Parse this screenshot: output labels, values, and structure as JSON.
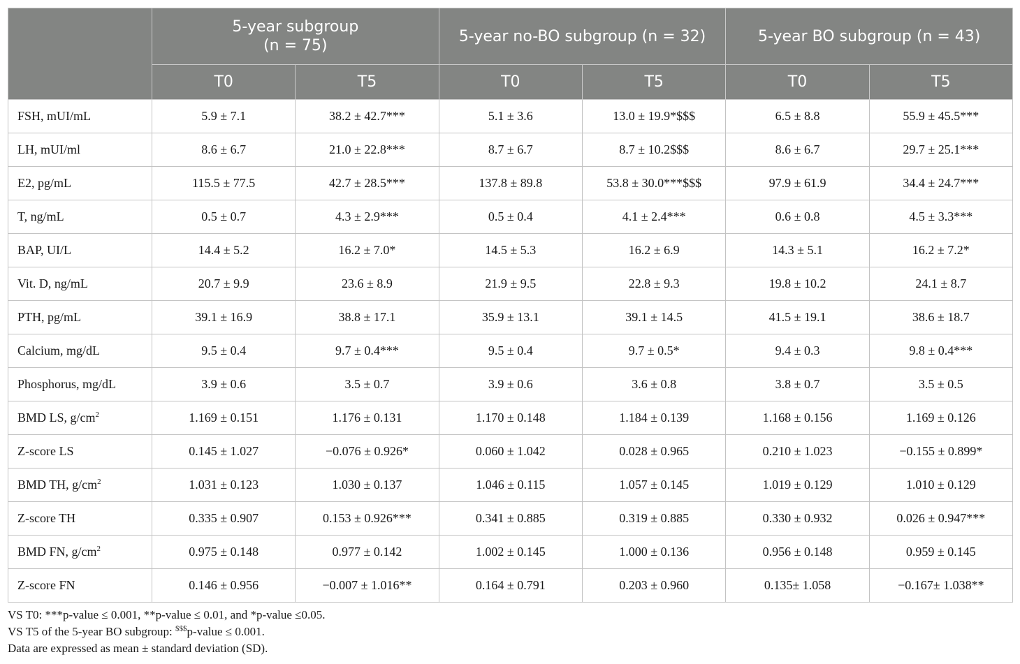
{
  "table": {
    "group_headers": [
      "",
      "5-year subgroup\n(n = 75)",
      "5-year no-BO subgroup (n = 32)",
      "5-year BO subgroup (n = 43)"
    ],
    "time_headers": [
      "T0",
      "T5",
      "T0",
      "T5",
      "T0",
      "T5"
    ],
    "rows": [
      {
        "label": "FSH, mUI/mL",
        "values": [
          "5.9 ± 7.1",
          "38.2 ± 42.7***",
          "5.1 ± 3.6",
          "13.0 ± 19.9*$$$",
          "6.5 ± 8.8",
          "55.9 ± 45.5***"
        ]
      },
      {
        "label": "LH, mUI/ml",
        "values": [
          "8.6 ± 6.7",
          "21.0 ± 22.8***",
          "8.7 ± 6.7",
          "8.7 ± 10.2$$$",
          "8.6 ± 6.7",
          "29.7 ± 25.1***"
        ]
      },
      {
        "label": "E2, pg/mL",
        "values": [
          "115.5 ± 77.5",
          "42.7 ± 28.5***",
          "137.8 ± 89.8",
          "53.8 ± 30.0***$$$",
          "97.9 ± 61.9",
          "34.4 ± 24.7***"
        ]
      },
      {
        "label": "T, ng/mL",
        "values": [
          "0.5 ± 0.7",
          "4.3 ± 2.9***",
          "0.5 ± 0.4",
          "4.1 ± 2.4***",
          "0.6 ± 0.8",
          "4.5 ± 3.3***"
        ]
      },
      {
        "label": "BAP, UI/L",
        "values": [
          "14.4 ± 5.2",
          "16.2 ± 7.0*",
          "14.5 ± 5.3",
          "16.2 ± 6.9",
          "14.3 ± 5.1",
          "16.2 ± 7.2*"
        ]
      },
      {
        "label": "Vit. D, ng/mL",
        "values": [
          "20.7 ± 9.9",
          "23.6 ± 8.9",
          "21.9 ± 9.5",
          "22.8 ± 9.3",
          "19.8 ± 10.2",
          "24.1 ± 8.7"
        ]
      },
      {
        "label": "PTH, pg/mL",
        "values": [
          "39.1 ± 16.9",
          "38.8 ± 17.1",
          "35.9 ± 13.1",
          "39.1 ± 14.5",
          "41.5 ± 19.1",
          "38.6 ± 18.7"
        ]
      },
      {
        "label": "Calcium, mg/dL",
        "values": [
          "9.5 ± 0.4",
          "9.7 ± 0.4***",
          "9.5 ± 0.4",
          "9.7 ± 0.5*",
          "9.4 ± 0.3",
          "9.8 ± 0.4***"
        ]
      },
      {
        "label": "Phosphorus, mg/dL",
        "values": [
          "3.9 ± 0.6",
          "3.5 ± 0.7",
          "3.9 ± 0.6",
          "3.6 ± 0.8",
          "3.8 ± 0.7",
          "3.5 ± 0.5"
        ]
      },
      {
        "label": "BMD LS, g/cm",
        "label_sup": "2",
        "values": [
          "1.169 ± 0.151",
          "1.176 ± 0.131",
          "1.170 ± 0.148",
          "1.184 ± 0.139",
          "1.168 ± 0.156",
          "1.169 ± 0.126"
        ]
      },
      {
        "label": "Z-score LS",
        "values": [
          "0.145 ± 1.027",
          "−0.076 ± 0.926*",
          "0.060 ± 1.042",
          "0.028 ± 0.965",
          "0.210 ± 1.023",
          "−0.155 ± 0.899*"
        ]
      },
      {
        "label": "BMD TH, g/cm",
        "label_sup": "2",
        "values": [
          "1.031 ± 0.123",
          "1.030 ± 0.137",
          "1.046 ± 0.115",
          "1.057 ± 0.145",
          "1.019 ± 0.129",
          "1.010 ± 0.129"
        ]
      },
      {
        "label": "Z-score TH",
        "values": [
          "0.335 ± 0.907",
          "0.153 ± 0.926***",
          "0.341 ± 0.885",
          "0.319 ± 0.885",
          "0.330 ± 0.932",
          "0.026 ± 0.947***"
        ]
      },
      {
        "label": "BMD FN, g/cm",
        "label_sup": "2",
        "values": [
          "0.975 ± 0.148",
          "0.977 ± 0.142",
          "1.002 ± 0.145",
          "1.000 ± 0.136",
          "0.956 ± 0.148",
          "0.959 ± 0.145"
        ]
      },
      {
        "label": "Z-score FN",
        "values": [
          "0.146 ± 0.956",
          "−0.007 ± 1.016**",
          "0.164 ± 0.791",
          "0.203 ± 0.960",
          "0.135± 1.058",
          "−0.167± 1.038**"
        ]
      }
    ]
  },
  "footnotes": {
    "line1": "VS T0: ***p-value ≤ 0.001, **p-value ≤ 0.01, and *p-value ≤0.05.",
    "line2_prefix": "VS T5 of the 5-year BO subgroup: ",
    "line2_sup": "$$$",
    "line2_suffix": "p-value ≤ 0.001.",
    "line3": "Data are expressed as mean ± standard deviation (SD)."
  }
}
